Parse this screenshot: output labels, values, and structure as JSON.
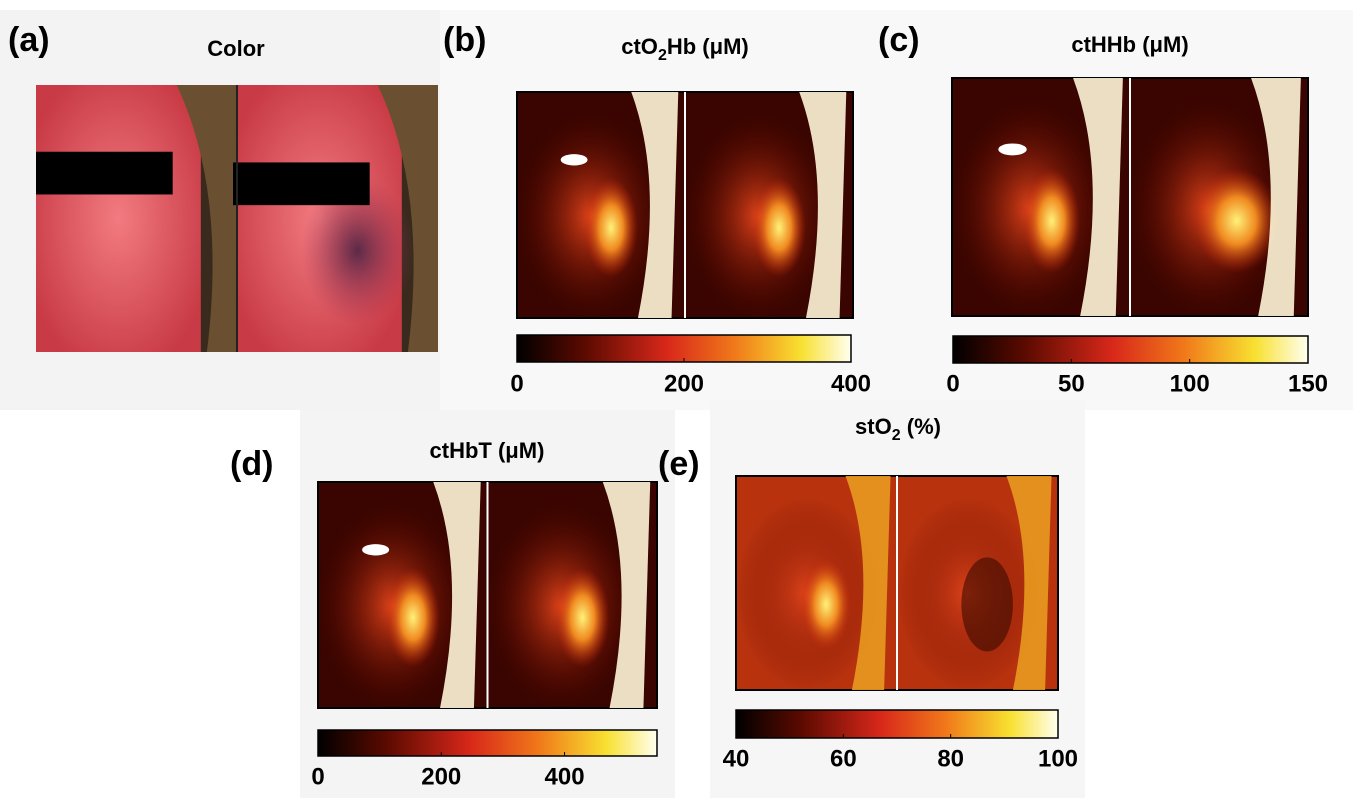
{
  "panels": [
    {
      "label": "(a)",
      "title": [
        "Color"
      ]
    },
    {
      "label": "(b)",
      "title": [
        "ctO",
        "2",
        "Hb (μM)"
      ],
      "colorbar": {
        "lim": [
          0,
          400
        ],
        "ticks": [
          0,
          200,
          400
        ]
      }
    },
    {
      "label": "(c)",
      "title": [
        "ctHHb (μM)"
      ],
      "colorbar": {
        "lim": [
          0,
          150
        ],
        "ticks": [
          0,
          50,
          100,
          150
        ]
      }
    },
    {
      "label": "(d)",
      "title": [
        "ctHbT (μM)"
      ],
      "colorbar": {
        "lim": [
          0,
          550
        ],
        "ticks": [
          0,
          200,
          400
        ]
      }
    },
    {
      "label": "(e)",
      "title": [
        "stO",
        "2",
        " (%)"
      ],
      "colorbar": {
        "lim": [
          40,
          100
        ],
        "ticks": [
          40,
          60,
          80,
          100
        ]
      }
    }
  ]
}
